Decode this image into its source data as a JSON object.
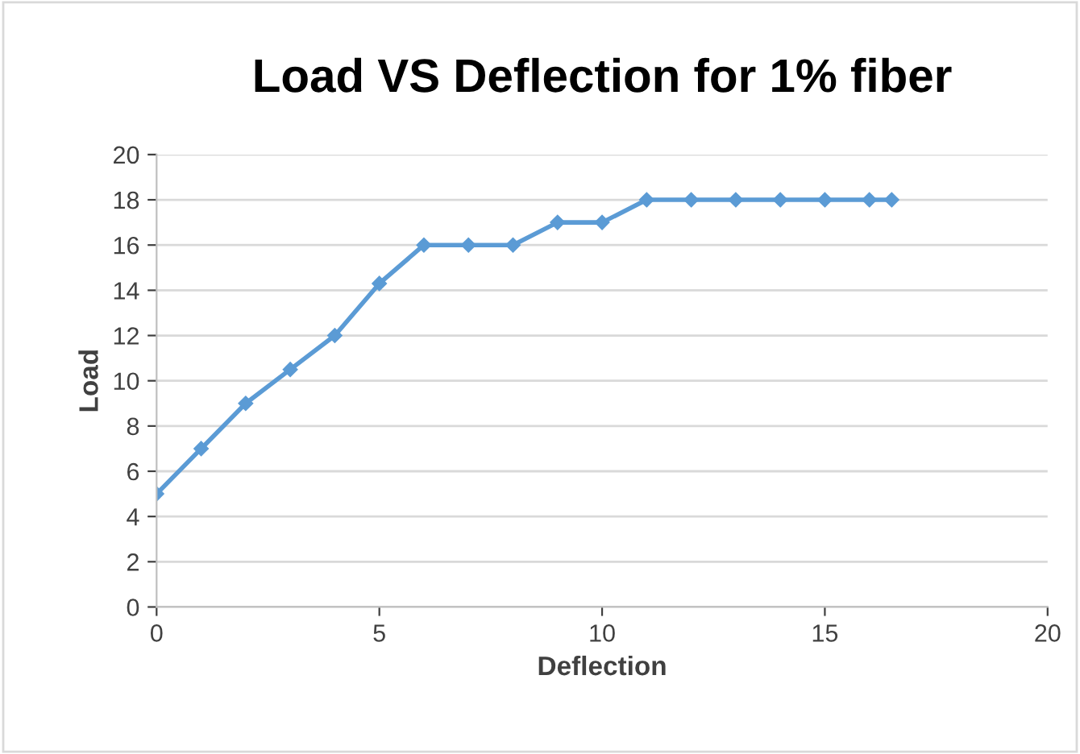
{
  "chart_data": {
    "type": "line",
    "title": "Load VS Deflection for 1% fiber",
    "xlabel": "Deflection",
    "ylabel": "Load",
    "x": [
      0,
      1,
      2,
      3,
      4,
      5,
      6,
      7,
      8,
      9,
      10,
      11,
      12,
      13,
      14,
      15,
      16,
      16.5
    ],
    "series": [
      {
        "color": "#5b9bd5",
        "values": [
          5,
          7,
          9,
          10.5,
          12,
          14.3,
          16,
          16,
          16,
          17,
          17,
          18,
          18,
          18,
          18,
          18,
          18,
          18
        ]
      }
    ],
    "xlim": [
      0,
      20
    ],
    "xticks": [
      0,
      5,
      10,
      15,
      20
    ],
    "ylim": [
      0,
      20
    ],
    "yticks": [
      0,
      2,
      4,
      6,
      8,
      10,
      12,
      14,
      16,
      18,
      20
    ],
    "grid": "y",
    "marker": "diamond",
    "line_style": "solid"
  }
}
